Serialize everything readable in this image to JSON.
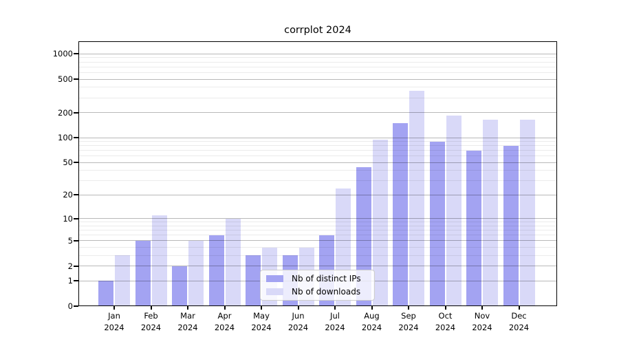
{
  "title": "corrplot 2024",
  "chart_data": {
    "type": "bar",
    "title": "corrplot 2024",
    "categories": [
      "Jan 2024",
      "Feb 2024",
      "Mar 2024",
      "Apr 2024",
      "May 2024",
      "Jun 2024",
      "Jul 2024",
      "Aug 2024",
      "Sep 2024",
      "Oct 2024",
      "Nov 2024",
      "Dec 2024"
    ],
    "series": [
      {
        "name": "Nb of distinct IPs",
        "color": "#a3a3f2",
        "values": [
          1,
          5,
          2,
          6,
          3,
          3,
          6,
          44,
          150,
          90,
          70,
          80
        ]
      },
      {
        "name": "Nb of downloads",
        "color": "#d9d9f8",
        "values": [
          3,
          11,
          5,
          10,
          4,
          4,
          24,
          95,
          360,
          185,
          165,
          163
        ]
      }
    ],
    "xlabel": "",
    "ylabel": "",
    "yscale": "log1p",
    "ylim": [
      0,
      1400
    ],
    "y_major_ticks": [
      0,
      1,
      2,
      5,
      10,
      20,
      50,
      100,
      200,
      500,
      1000
    ],
    "y_minor_gridlines": [
      3,
      4,
      6,
      7,
      8,
      9,
      30,
      40,
      60,
      70,
      80,
      90,
      300,
      400,
      600,
      700,
      800,
      900
    ],
    "grid": "major and minor horizontal gridlines drawn over bars",
    "legend_position": "inside lower-center"
  }
}
